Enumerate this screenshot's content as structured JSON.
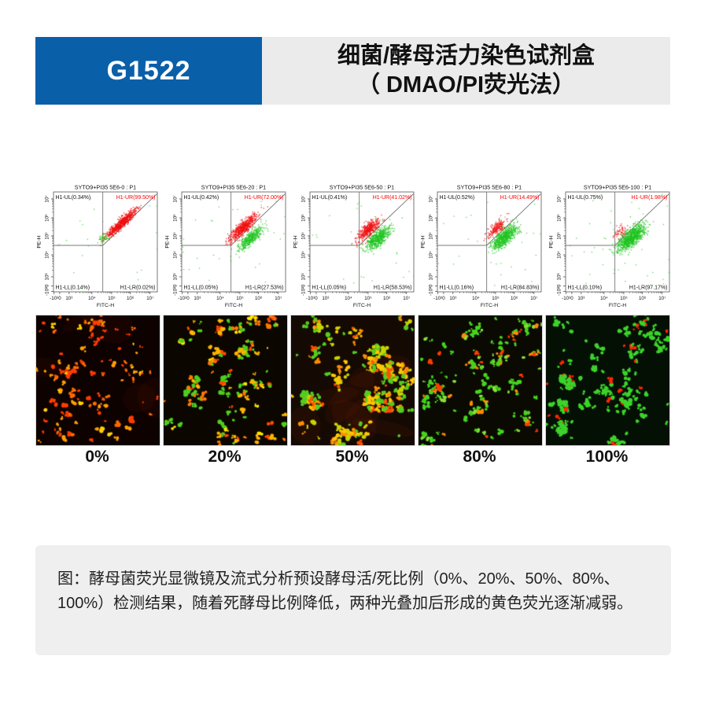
{
  "header": {
    "code": "G1522",
    "title_line1": "细菌/酵母活力染色试剂盒",
    "title_line2": "（ DMAO/PI荧光法）"
  },
  "colors": {
    "accent_blue": "#0a5fa9",
    "header_gray": "#ebebeb",
    "caption_gray": "#efefef",
    "quadrant_red": "#ff0000",
    "scatter_red": "#f01010",
    "scatter_green": "#1ec41e",
    "plot_line": "#666666"
  },
  "chart_data": {
    "type": "scatter",
    "xlabel": "FITC-H",
    "ylabel": "PE-H",
    "x_ticks": [
      "-10³",
      "0",
      "10³",
      "10⁴",
      "10⁵",
      "10⁶",
      "10⁷"
    ],
    "y_ticks": [
      "-10³",
      "0",
      "10³",
      "10⁴",
      "10⁵",
      "10⁶",
      "10⁷"
    ],
    "plots": [
      {
        "title": "SYTO9+PI35 5E6-0 : P1",
        "quadrants": {
          "ul": "H1-UL(0.34%)",
          "ur": "H1-UR(99.50%)",
          "ll": "H1-LL(0.14%)",
          "lr": "H1-LR(0.02%)"
        },
        "quadrant_values": {
          "ul": 0.34,
          "ur": 99.5,
          "ll": 0.14,
          "lr": 0.02
        },
        "clusters": [
          {
            "color": "#f01010",
            "n": 750,
            "cx": 0.655,
            "cy": 0.315,
            "along": 0.1,
            "across": 0.018
          },
          {
            "color": "#1ec41e",
            "n": 40,
            "cx": 0.49,
            "cy": 0.46,
            "along": 0.025,
            "across": 0.02
          }
        ],
        "sparse_green": 22
      },
      {
        "title": "SYTO9+PI35 5E6-20 : P1",
        "quadrants": {
          "ul": "H1-UL(0.42%)",
          "ur": "H1-UR(72.00%)",
          "ll": "H1-LL(0.05%)",
          "lr": "H1-LR(27.53%)"
        },
        "quadrant_values": {
          "ul": 0.42,
          "ur": 72.0,
          "ll": 0.05,
          "lr": 27.53
        },
        "clusters": [
          {
            "color": "#f01010",
            "n": 600,
            "cx": 0.595,
            "cy": 0.355,
            "along": 0.085,
            "across": 0.024
          },
          {
            "color": "#1ec41e",
            "n": 420,
            "cx": 0.665,
            "cy": 0.465,
            "along": 0.08,
            "across": 0.024
          }
        ],
        "sparse_green": 28
      },
      {
        "title": "SYTO9+PI35 5E6-50 : P1",
        "quadrants": {
          "ul": "H1-UL(0.41%)",
          "ur": "H1-UR(41.02%)",
          "ll": "H1-LL(0.05%)",
          "lr": "H1-LR(58.53%)"
        },
        "quadrant_values": {
          "ul": 0.41,
          "ur": 41.02,
          "ll": 0.05,
          "lr": 58.53
        },
        "clusters": [
          {
            "color": "#f01010",
            "n": 420,
            "cx": 0.565,
            "cy": 0.375,
            "along": 0.07,
            "across": 0.026
          },
          {
            "color": "#1ec41e",
            "n": 560,
            "cx": 0.655,
            "cy": 0.465,
            "along": 0.075,
            "across": 0.03
          }
        ],
        "sparse_green": 32
      },
      {
        "title": "SYTO9+PI35 5E6-80 : P1",
        "quadrants": {
          "ul": "H1-UL(0.52%)",
          "ur": "H1-UR(14.49%)",
          "ll": "H1-LL(0.16%)",
          "lr": "H1-LR(84.83%)"
        },
        "quadrant_values": {
          "ul": 0.52,
          "ur": 14.49,
          "ll": 0.16,
          "lr": 84.83
        },
        "clusters": [
          {
            "color": "#f01010",
            "n": 200,
            "cx": 0.575,
            "cy": 0.36,
            "along": 0.055,
            "across": 0.022
          },
          {
            "color": "#1ec41e",
            "n": 650,
            "cx": 0.645,
            "cy": 0.455,
            "along": 0.075,
            "across": 0.032
          }
        ],
        "sparse_green": 32
      },
      {
        "title": "SYTO9+PI35 5E6-100 : P1",
        "quadrants": {
          "ul": "H1-UL(0.75%)",
          "ur": "H1-UR(1.98%)",
          "ll": "H1-LL(0.10%)",
          "lr": "H1-LR(97.17%)"
        },
        "quadrant_values": {
          "ul": 0.75,
          "ur": 1.98,
          "ll": 0.1,
          "lr": 97.17
        },
        "clusters": [
          {
            "color": "#f01010",
            "n": 60,
            "cx": 0.53,
            "cy": 0.4,
            "along": 0.035,
            "across": 0.028
          },
          {
            "color": "#1ec41e",
            "n": 900,
            "cx": 0.635,
            "cy": 0.455,
            "along": 0.085,
            "across": 0.034
          }
        ],
        "sparse_green": 45
      }
    ]
  },
  "microscopy": {
    "panels": [
      {
        "label": "0%",
        "bg": "#0d0200",
        "n_clusters": 55,
        "blobs": [
          1,
          3
        ],
        "singles": 25,
        "r": [
          1.2,
          2.6
        ],
        "haze": 5,
        "haze_color": "rgba(255,60,0,0.045)",
        "palette": [
          [
            "#ff3c00",
            40
          ],
          [
            "#ff6a00",
            30
          ],
          [
            "#ffa000",
            22
          ],
          [
            "#ffd000",
            8
          ]
        ]
      },
      {
        "label": "20%",
        "bg": "#0b0700",
        "n_clusters": 26,
        "blobs": [
          3,
          8
        ],
        "singles": 12,
        "r": [
          1.4,
          2.8
        ],
        "haze": 0,
        "haze_color": "rgba(255,60,0,0.0)",
        "palette": [
          [
            "#ffb400",
            28
          ],
          [
            "#ff7a00",
            18
          ],
          [
            "#4ecf1e",
            30
          ],
          [
            "#ffe400",
            12
          ],
          [
            "#ff4800",
            12
          ]
        ]
      },
      {
        "label": "50%",
        "bg": "#150a03",
        "n_clusters": 30,
        "blobs": [
          5,
          12
        ],
        "singles": 15,
        "r": [
          1.4,
          3.0
        ],
        "haze": 7,
        "haze_color": "rgba(150,40,10,0.10)",
        "palette": [
          [
            "#c8d400",
            22
          ],
          [
            "#ffc800",
            24
          ],
          [
            "#55cc22",
            30
          ],
          [
            "#ff8c00",
            16
          ],
          [
            "#ff5000",
            8
          ]
        ]
      },
      {
        "label": "80%",
        "bg": "#0a0a03",
        "n_clusters": 38,
        "blobs": [
          2,
          6
        ],
        "singles": 20,
        "r": [
          1.3,
          2.6
        ],
        "haze": 0,
        "haze_color": "rgba(0,0,0,0)",
        "palette": [
          [
            "#46d41e",
            66
          ],
          [
            "#8ae03a",
            14
          ],
          [
            "#ff8c00",
            11
          ],
          [
            "#ff3c00",
            9
          ]
        ]
      },
      {
        "label": "100%",
        "bg": "#051005",
        "n_clusters": 24,
        "blobs": [
          2,
          9
        ],
        "singles": 22,
        "r": [
          1.3,
          2.8
        ],
        "haze": 0,
        "haze_color": "rgba(0,0,0,0)",
        "big_clusters": 4,
        "palette": [
          [
            "#3cd42a",
            90
          ],
          [
            "#ff2800",
            10
          ]
        ]
      }
    ]
  },
  "caption": {
    "text": "图：酵母菌荧光显微镜及流式分析预设酵母活/死比例（0%、20%、50%、80%、100%）检测结果，随着死酵母比例降低，两种光叠加后形成的黄色荧光逐渐减弱。"
  }
}
